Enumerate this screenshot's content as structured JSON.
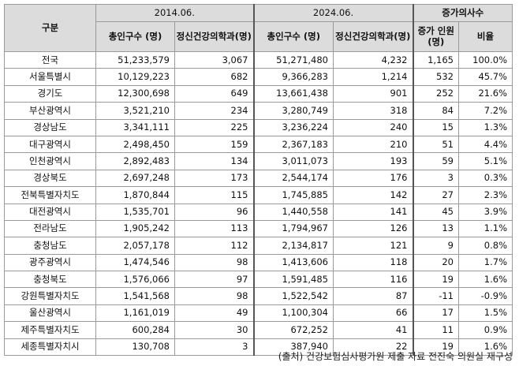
{
  "table": {
    "header": {
      "category": "구분",
      "period_2014": "2014.06.",
      "period_2024": "2024.06.",
      "increase_group": "증가의사수",
      "population": "총인구수 (명)",
      "clinics": "정신건강의학과(명)",
      "increase_count": "증가 인원(명)",
      "ratio": "비율"
    },
    "rows": [
      {
        "region": "전국",
        "pop2014": "51,233,579",
        "clinic2014": "3,067",
        "pop2024": "51,271,480",
        "clinic2024": "4,232",
        "increase": "1,165",
        "ratio": "100.0%"
      },
      {
        "region": "서울특별시",
        "pop2014": "10,129,223",
        "clinic2014": "682",
        "pop2024": "9,366,283",
        "clinic2024": "1,214",
        "increase": "532",
        "ratio": "45.7%"
      },
      {
        "region": "경기도",
        "pop2014": "12,300,698",
        "clinic2014": "649",
        "pop2024": "13,661,438",
        "clinic2024": "901",
        "increase": "252",
        "ratio": "21.6%"
      },
      {
        "region": "부산광역시",
        "pop2014": "3,521,210",
        "clinic2014": "234",
        "pop2024": "3,280,749",
        "clinic2024": "318",
        "increase": "84",
        "ratio": "7.2%"
      },
      {
        "region": "경상남도",
        "pop2014": "3,341,111",
        "clinic2014": "225",
        "pop2024": "3,236,224",
        "clinic2024": "240",
        "increase": "15",
        "ratio": "1.3%"
      },
      {
        "region": "대구광역시",
        "pop2014": "2,498,450",
        "clinic2014": "159",
        "pop2024": "2,367,183",
        "clinic2024": "210",
        "increase": "51",
        "ratio": "4.4%"
      },
      {
        "region": "인천광역시",
        "pop2014": "2,892,483",
        "clinic2014": "134",
        "pop2024": "3,011,073",
        "clinic2024": "193",
        "increase": "59",
        "ratio": "5.1%"
      },
      {
        "region": "경상북도",
        "pop2014": "2,697,248",
        "clinic2014": "173",
        "pop2024": "2,544,174",
        "clinic2024": "176",
        "increase": "3",
        "ratio": "0.3%"
      },
      {
        "region": "전북특별자치도",
        "pop2014": "1,870,844",
        "clinic2014": "115",
        "pop2024": "1,745,885",
        "clinic2024": "142",
        "increase": "27",
        "ratio": "2.3%"
      },
      {
        "region": "대전광역시",
        "pop2014": "1,535,701",
        "clinic2014": "96",
        "pop2024": "1,440,558",
        "clinic2024": "141",
        "increase": "45",
        "ratio": "3.9%"
      },
      {
        "region": "전라남도",
        "pop2014": "1,905,242",
        "clinic2014": "113",
        "pop2024": "1,794,967",
        "clinic2024": "126",
        "increase": "13",
        "ratio": "1.1%"
      },
      {
        "region": "충청남도",
        "pop2014": "2,057,178",
        "clinic2014": "112",
        "pop2024": "2,134,817",
        "clinic2024": "121",
        "increase": "9",
        "ratio": "0.8%"
      },
      {
        "region": "광주광역시",
        "pop2014": "1,474,546",
        "clinic2014": "98",
        "pop2024": "1,413,606",
        "clinic2024": "118",
        "increase": "20",
        "ratio": "1.7%"
      },
      {
        "region": "충청북도",
        "pop2014": "1,576,066",
        "clinic2014": "97",
        "pop2024": "1,591,485",
        "clinic2024": "116",
        "increase": "19",
        "ratio": "1.6%"
      },
      {
        "region": "강원특별자치도",
        "pop2014": "1,541,568",
        "clinic2014": "98",
        "pop2024": "1,522,542",
        "clinic2024": "87",
        "increase": "-11",
        "ratio": "-0.9%"
      },
      {
        "region": "울산광역시",
        "pop2014": "1,161,019",
        "clinic2014": "49",
        "pop2024": "1,100,304",
        "clinic2024": "66",
        "increase": "17",
        "ratio": "1.5%"
      },
      {
        "region": "제주특별자치도",
        "pop2014": "600,284",
        "clinic2014": "30",
        "pop2024": "672,252",
        "clinic2024": "41",
        "increase": "11",
        "ratio": "0.9%"
      },
      {
        "region": "세종특별자치시",
        "pop2014": "130,708",
        "clinic2014": "3",
        "pop2024": "387,940",
        "clinic2024": "22",
        "increase": "19",
        "ratio": "1.6%"
      }
    ]
  },
  "footnote": "(출처) 건강보험심사평가원 제출 자료 전진숙 의원실 재구성"
}
